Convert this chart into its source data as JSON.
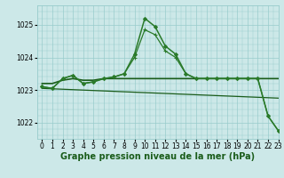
{
  "bg_color": "#cce8e8",
  "grid_color": "#99cccc",
  "line_color_dark": "#1a5c1a",
  "xlabel": "Graphe pression niveau de la mer (hPa)",
  "xlabel_fontsize": 7,
  "ylim": [
    1021.5,
    1025.6
  ],
  "xlim": [
    -0.5,
    23
  ],
  "yticks": [
    1022,
    1023,
    1024,
    1025
  ],
  "xticks": [
    0,
    1,
    2,
    3,
    4,
    5,
    6,
    7,
    8,
    9,
    10,
    11,
    12,
    13,
    14,
    15,
    16,
    17,
    18,
    19,
    20,
    21,
    22,
    23
  ],
  "series": [
    {
      "x": [
        0,
        1,
        2,
        3,
        4,
        5,
        6,
        7,
        8,
        9,
        10,
        11,
        12,
        13,
        14,
        15,
        16,
        17,
        18,
        19,
        20,
        21,
        22,
        23
      ],
      "y": [
        1023.1,
        1023.05,
        1023.35,
        1023.45,
        1023.2,
        1023.25,
        1023.35,
        1023.4,
        1023.5,
        1024.1,
        1025.2,
        1024.95,
        1024.35,
        1024.1,
        1023.5,
        1023.35,
        1023.35,
        1023.35,
        1023.35,
        1023.35,
        1023.35,
        1023.35,
        1022.2,
        1021.75
      ],
      "color": "#2a7a2a",
      "lw": 1.1,
      "marker": "D",
      "ms": 2.0,
      "zorder": 4
    },
    {
      "x": [
        0,
        1,
        2,
        3,
        4,
        5,
        6,
        7,
        8,
        9,
        10,
        11,
        12,
        13,
        14,
        15,
        16,
        17,
        18,
        19,
        20,
        21,
        22,
        23
      ],
      "y": [
        1023.1,
        1023.05,
        1023.35,
        1023.45,
        1023.2,
        1023.25,
        1023.35,
        1023.4,
        1023.5,
        1024.0,
        1024.85,
        1024.7,
        1024.2,
        1024.0,
        1023.5,
        1023.35,
        1023.35,
        1023.35,
        1023.35,
        1023.35,
        1023.35,
        1023.35,
        1022.2,
        1021.75
      ],
      "color": "#2a7a2a",
      "lw": 0.9,
      "marker": "+",
      "ms": 3.0,
      "zorder": 3
    },
    {
      "x": [
        0,
        1,
        2,
        3,
        4,
        5,
        6,
        7,
        8,
        9,
        10,
        11,
        12,
        13,
        14,
        15,
        16,
        17,
        18,
        19,
        20,
        21,
        22,
        23
      ],
      "y": [
        1023.2,
        1023.2,
        1023.3,
        1023.35,
        1023.3,
        1023.3,
        1023.35,
        1023.35,
        1023.35,
        1023.35,
        1023.35,
        1023.35,
        1023.35,
        1023.35,
        1023.35,
        1023.35,
        1023.35,
        1023.35,
        1023.35,
        1023.35,
        1023.35,
        1023.35,
        1023.35,
        1023.35
      ],
      "color": "#1a5c1a",
      "lw": 1.2,
      "marker": null,
      "ms": 0,
      "zorder": 2
    },
    {
      "x": [
        0,
        23
      ],
      "y": [
        1023.05,
        1022.75
      ],
      "color": "#1a5c1a",
      "lw": 0.9,
      "marker": null,
      "ms": 0,
      "zorder": 2
    }
  ],
  "tick_fontsize": 5.5,
  "figsize": [
    3.2,
    2.0
  ],
  "dpi": 100
}
